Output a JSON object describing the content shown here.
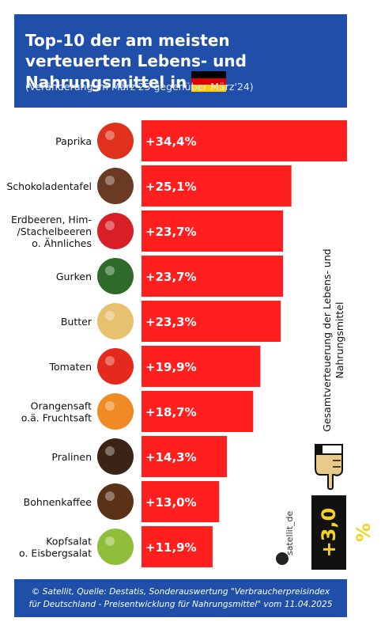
{
  "header": {
    "title": "Top-10 der am meisten verteuerten Lebens- und Nahrungsmittel in",
    "subtitle": "(Veränderung im März'25 gegenüber März'24)",
    "flag_colors": [
      "#000000",
      "#dd0000",
      "#ffce00"
    ]
  },
  "chart_data": {
    "type": "bar",
    "orientation": "horizontal",
    "categories": [
      "Paprika",
      "Schokoladentafel",
      "Erdbeeren, Him-/Stachelbeeren o. Ähnliches",
      "Gurken",
      "Butter",
      "Tomaten",
      "Orangensaft o.ä. Fruchtsaft",
      "Pralinen",
      "Bohnenkaffee",
      "Kopfsalat o. Eisbergsalat"
    ],
    "category_lines": [
      [
        "Paprika"
      ],
      [
        "Schokoladentafel"
      ],
      [
        "Erdbeeren, Him-",
        "/Stachelbeeren",
        "o. Ähnliches"
      ],
      [
        "Gurken"
      ],
      [
        "Butter"
      ],
      [
        "Tomaten"
      ],
      [
        "Orangensaft",
        "o.ä. Fruchtsaft"
      ],
      [
        "Pralinen"
      ],
      [
        "Bohnenkaffee"
      ],
      [
        "Kopfsalat",
        "o. Eisbergsalat"
      ]
    ],
    "values": [
      34.4,
      25.1,
      23.7,
      23.7,
      23.3,
      19.9,
      18.7,
      14.3,
      13.0,
      11.9
    ],
    "data_labels": [
      "+34,4%",
      "+25,1%",
      "+23,7%",
      "+23,7%",
      "+23,3%",
      "+19,9%",
      "+18,7%",
      "+14,3%",
      "+13,0%",
      "+11,9%"
    ],
    "icons": [
      "paprika-icon",
      "chocolate-icon",
      "berries-icon",
      "cucumber-icon",
      "butter-icon",
      "tomato-icon",
      "juice-icon",
      "praline-icon",
      "coffee-icon",
      "lettuce-icon"
    ],
    "icon_colors": [
      "#e0301e",
      "#6b3a24",
      "#d81f26",
      "#2f6a2a",
      "#e8c170",
      "#e32a1c",
      "#f08a24",
      "#3b2416",
      "#5a3216",
      "#8fbf3a"
    ],
    "bar_color": "#ff1f1f",
    "xlim": [
      0,
      34.4
    ]
  },
  "summary": {
    "label": "Gesamtverteuerung der Lebens- und Nahrungsmittel",
    "value": "+3,0 %",
    "value_color": "#f4d21f"
  },
  "brand": {
    "name": "satellit_de"
  },
  "footer": {
    "line1": "© Satellit, Quelle: Destatis, Sonderauswertung \"Verbraucherpreisindex",
    "line2": "für Deutschland - Preisentwicklung für Nahrungsmittel\" vom 11.04.2025"
  }
}
